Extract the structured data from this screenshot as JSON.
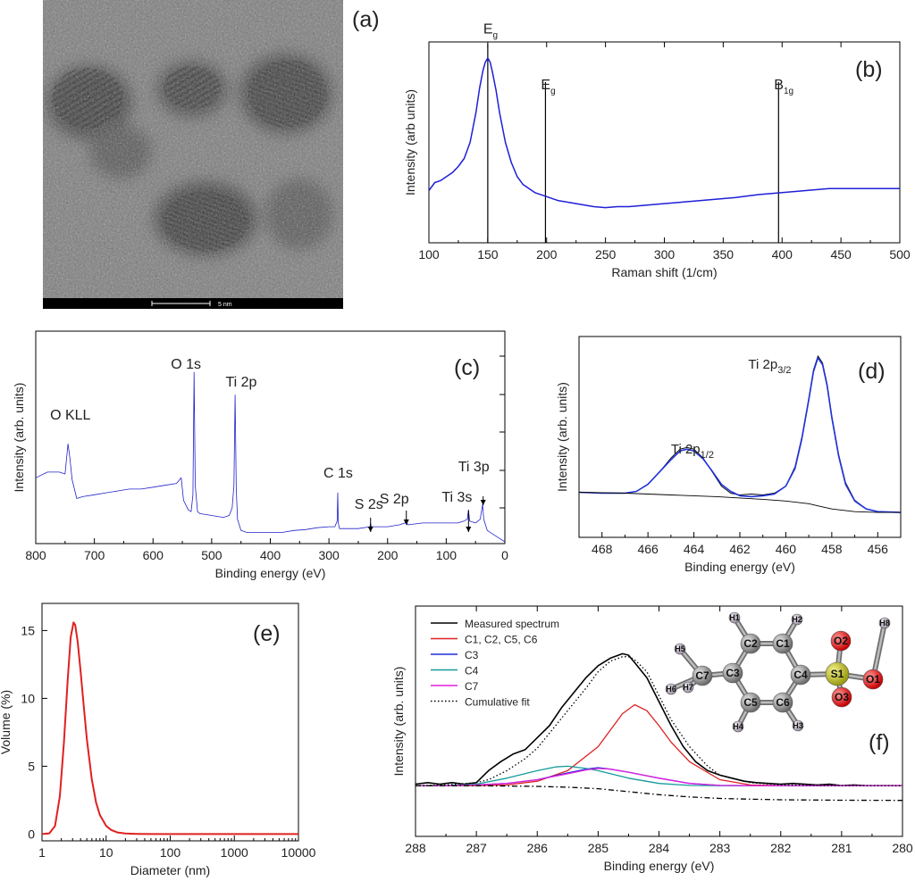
{
  "panels": {
    "a": {
      "letter": "(a)",
      "scale_bar_label": "5 nm",
      "image_description_colors": {
        "background": "#777777",
        "bar": "#000000"
      }
    },
    "b": {
      "letter": "(b)",
      "peak_labels": [
        {
          "main": "E",
          "sub": "g",
          "x": 150
        },
        {
          "main": "E",
          "sub": "g",
          "x": 199
        },
        {
          "main": "B",
          "sub": "1g",
          "x": 397
        }
      ]
    },
    "c": {
      "letter": "(c)",
      "peak_labels": [
        {
          "text": "O KLL",
          "x": 745
        },
        {
          "text": "O 1s",
          "x": 530
        },
        {
          "text": "Ti 2p",
          "x": 458
        },
        {
          "text": "C 1s",
          "x": 285
        },
        {
          "text": "S 2s",
          "x": 229
        },
        {
          "text": "S 2p",
          "x": 168
        },
        {
          "text": "Ti 3s",
          "x": 62
        },
        {
          "text": "Ti 3p",
          "x": 37
        }
      ]
    },
    "d": {
      "letter": "(d)",
      "peak_labels": [
        {
          "main": "Ti  2p",
          "sub": "1/2",
          "x": 464.3
        },
        {
          "main": "Ti  2p",
          "sub": "3/2",
          "x": 458.6
        }
      ]
    },
    "e": {
      "letter": "(e)"
    },
    "f": {
      "letter": "(f)",
      "molecule_atoms": [
        "H1",
        "H2",
        "H5",
        "C2",
        "C1",
        "O2",
        "H8",
        "C7",
        "C3",
        "C4",
        "S1",
        "O1",
        "H6",
        "H7",
        "C5",
        "C6",
        "O3",
        "H4",
        "H3"
      ]
    }
  },
  "chart_data": [
    {
      "id": "b",
      "type": "line",
      "title": "",
      "xlabel": "Raman shift (1/cm)",
      "ylabel": "Intensity (arb units)",
      "xlim": [
        100,
        500
      ],
      "ylim": [
        0,
        1
      ],
      "xticks": [
        100,
        150,
        200,
        250,
        300,
        350,
        400,
        450,
        500
      ],
      "yticks_labeled": false,
      "series": [
        {
          "color": "#1f1fd8",
          "x": [
            100,
            105,
            110,
            115,
            120,
            125,
            130,
            135,
            140,
            143,
            146,
            148,
            150,
            152,
            154,
            157,
            160,
            165,
            170,
            175,
            180,
            190,
            200,
            210,
            220,
            230,
            240,
            250,
            260,
            270,
            280,
            300,
            320,
            340,
            360,
            380,
            400,
            420,
            440,
            460,
            480,
            500
          ],
          "y": [
            0.26,
            0.3,
            0.31,
            0.33,
            0.35,
            0.38,
            0.42,
            0.5,
            0.65,
            0.77,
            0.86,
            0.9,
            0.92,
            0.9,
            0.85,
            0.76,
            0.65,
            0.5,
            0.4,
            0.33,
            0.29,
            0.25,
            0.23,
            0.21,
            0.2,
            0.19,
            0.18,
            0.175,
            0.18,
            0.18,
            0.185,
            0.195,
            0.205,
            0.215,
            0.225,
            0.24,
            0.25,
            0.26,
            0.27,
            0.27,
            0.27,
            0.27
          ]
        }
      ],
      "vlines": [
        {
          "x": 150,
          "top": 0.99
        },
        {
          "x": 199,
          "top": 0.8
        },
        {
          "x": 397,
          "top": 0.8
        }
      ]
    },
    {
      "id": "c",
      "type": "line",
      "title": "",
      "xlabel": "Binding energy (eV)",
      "ylabel": "Intensity (arb. units)",
      "xlim": [
        800,
        0
      ],
      "ylim": [
        0,
        1
      ],
      "xticks": [
        800,
        700,
        600,
        500,
        400,
        300,
        200,
        100,
        0
      ],
      "yticks_labeled": false,
      "series": [
        {
          "color": "#2222cc",
          "x": [
            800,
            780,
            760,
            750,
            745,
            742,
            738,
            730,
            720,
            700,
            680,
            660,
            640,
            620,
            600,
            580,
            560,
            552,
            548,
            540,
            535,
            532,
            530,
            528,
            524,
            520,
            500,
            480,
            470,
            465,
            462,
            460,
            458,
            456,
            450,
            440,
            430,
            420,
            400,
            380,
            360,
            340,
            320,
            300,
            290,
            286,
            285,
            284,
            282,
            270,
            250,
            230,
            229,
            228,
            200,
            180,
            170,
            168,
            166,
            140,
            120,
            100,
            80,
            70,
            64,
            62,
            60,
            50,
            42,
            38,
            37,
            36,
            30,
            20,
            10,
            0
          ],
          "y": [
            0.34,
            0.37,
            0.37,
            0.36,
            0.52,
            0.45,
            0.33,
            0.23,
            0.24,
            0.25,
            0.26,
            0.27,
            0.28,
            0.28,
            0.29,
            0.3,
            0.31,
            0.34,
            0.22,
            0.17,
            0.16,
            0.25,
            0.9,
            0.3,
            0.16,
            0.15,
            0.14,
            0.13,
            0.14,
            0.18,
            0.3,
            0.78,
            0.28,
            0.12,
            0.06,
            0.05,
            0.05,
            0.05,
            0.05,
            0.05,
            0.06,
            0.065,
            0.075,
            0.08,
            0.08,
            0.11,
            0.26,
            0.1,
            0.07,
            0.07,
            0.07,
            0.08,
            0.1,
            0.08,
            0.08,
            0.09,
            0.1,
            0.12,
            0.09,
            0.1,
            0.1,
            0.1,
            0.1,
            0.11,
            0.12,
            0.17,
            0.11,
            0.1,
            0.12,
            0.2,
            0.16,
            0.12,
            0.06,
            0.04,
            0.02,
            0.0
          ]
        }
      ]
    },
    {
      "id": "d",
      "type": "line",
      "title": "",
      "xlabel": "Binding energy (eV)",
      "ylabel": "Intensity (arb. units)",
      "xlim": [
        469,
        455
      ],
      "ylim": [
        0,
        1
      ],
      "xticks": [
        468,
        466,
        464,
        462,
        460,
        458,
        456
      ],
      "yticks_labeled": false,
      "series": [
        {
          "color": "#000000",
          "x": [
            469,
            468,
            467,
            466.5,
            466,
            465.5,
            465,
            464.6,
            464.3,
            464,
            463.6,
            463.2,
            462.8,
            462.4,
            462,
            461.5,
            461,
            460.5,
            460,
            459.6,
            459.3,
            459,
            458.8,
            458.6,
            458.4,
            458.2,
            458,
            457.7,
            457.4,
            457,
            456.5,
            456,
            455
          ],
          "y": [
            0.165,
            0.16,
            0.16,
            0.17,
            0.21,
            0.28,
            0.36,
            0.41,
            0.42,
            0.41,
            0.36,
            0.28,
            0.2,
            0.16,
            0.15,
            0.155,
            0.15,
            0.16,
            0.2,
            0.31,
            0.48,
            0.7,
            0.86,
            0.94,
            0.9,
            0.78,
            0.6,
            0.38,
            0.22,
            0.12,
            0.07,
            0.055,
            0.05
          ]
        },
        {
          "color": "#2233dd",
          "x": [
            469,
            468,
            467,
            466.5,
            466,
            465.5,
            465,
            464.6,
            464.3,
            464,
            463.6,
            463.2,
            462.8,
            462.4,
            462,
            461.5,
            461,
            460.5,
            460,
            459.6,
            459.3,
            459,
            458.8,
            458.6,
            458.4,
            458.2,
            458,
            457.7,
            457.4,
            457,
            456.5,
            456,
            455
          ],
          "y": [
            0.165,
            0.16,
            0.16,
            0.17,
            0.21,
            0.28,
            0.35,
            0.4,
            0.41,
            0.4,
            0.355,
            0.285,
            0.21,
            0.17,
            0.145,
            0.14,
            0.145,
            0.155,
            0.2,
            0.3,
            0.47,
            0.69,
            0.85,
            0.93,
            0.89,
            0.77,
            0.59,
            0.37,
            0.21,
            0.115,
            0.07,
            0.055,
            0.05
          ]
        },
        {
          "color": "#000000",
          "x": [
            469,
            467,
            465,
            463,
            461,
            460,
            459,
            458.5,
            458,
            457,
            456,
            455
          ],
          "y": [
            0.165,
            0.16,
            0.15,
            0.14,
            0.125,
            0.115,
            0.1,
            0.085,
            0.07,
            0.055,
            0.05,
            0.05
          ]
        }
      ]
    },
    {
      "id": "e",
      "type": "line",
      "title": "",
      "xlabel": "Diameter (nm)",
      "ylabel": "Volume (%)",
      "xscale": "log",
      "xlim": [
        1,
        10000
      ],
      "ylim": [
        -0.5,
        17
      ],
      "xticks": [
        1,
        10,
        100,
        1000,
        10000
      ],
      "xtick_labels": [
        "1",
        "10",
        "100",
        "1000",
        "10000"
      ],
      "yticks": [
        0,
        5,
        10,
        15
      ],
      "series": [
        {
          "color": "#e02020",
          "x": [
            1,
            1.3,
            1.6,
            1.9,
            2.2,
            2.5,
            2.8,
            3.1,
            3.3,
            3.6,
            4,
            4.5,
            5,
            6,
            7,
            8,
            10,
            12,
            15,
            20,
            30,
            50,
            100,
            1000,
            10000
          ],
          "y": [
            0,
            0.05,
            0.6,
            2.8,
            6.8,
            11.2,
            14.5,
            15.6,
            15.4,
            14.2,
            12.0,
            9.3,
            7.0,
            4.0,
            2.3,
            1.4,
            0.6,
            0.3,
            0.12,
            0.04,
            0.01,
            0,
            0,
            0,
            0
          ]
        }
      ]
    },
    {
      "id": "f",
      "type": "line",
      "title": "",
      "xlabel": "Binding energy (eV)",
      "ylabel": "Intensity (arb. units)",
      "xlim": [
        288,
        280
      ],
      "ylim": [
        0,
        1
      ],
      "xticks": [
        288,
        287,
        286,
        285,
        284,
        283,
        282,
        281,
        280
      ],
      "yticks_labeled": false,
      "legend": "top-left",
      "series": [
        {
          "name": "Measured spectrum",
          "color": "#000000",
          "style": "solid",
          "x": [
            288,
            287.8,
            287.6,
            287.4,
            287.2,
            287,
            286.8,
            286.6,
            286.4,
            286.2,
            286,
            285.8,
            285.6,
            285.4,
            285.2,
            285,
            284.8,
            284.6,
            284.5,
            284.4,
            284.2,
            284,
            283.8,
            283.6,
            283.4,
            283.2,
            283,
            282.8,
            282.6,
            282.4,
            282.2,
            282,
            281.8,
            281.6,
            281.4,
            281.2,
            281,
            280.8,
            280.6,
            280.4,
            280.2,
            280
          ],
          "y": [
            0.11,
            0.12,
            0.11,
            0.12,
            0.11,
            0.12,
            0.2,
            0.26,
            0.31,
            0.34,
            0.42,
            0.5,
            0.62,
            0.72,
            0.82,
            0.9,
            0.95,
            0.98,
            0.97,
            0.92,
            0.82,
            0.66,
            0.5,
            0.36,
            0.26,
            0.2,
            0.17,
            0.15,
            0.13,
            0.12,
            0.115,
            0.11,
            0.115,
            0.11,
            0.105,
            0.11,
            0.1,
            0.105,
            0.1,
            0.1,
            0.1,
            0.1
          ]
        },
        {
          "name": "C1, C2, C5, C6",
          "color": "#dd2222",
          "style": "solid",
          "x": [
            288,
            287.5,
            287,
            286.5,
            286,
            285.5,
            285,
            284.8,
            284.6,
            284.4,
            284.2,
            284,
            283.8,
            283.5,
            283,
            282.5,
            282,
            281,
            280
          ],
          "y": [
            0.1,
            0.1,
            0.1,
            0.105,
            0.13,
            0.2,
            0.36,
            0.47,
            0.58,
            0.64,
            0.6,
            0.5,
            0.39,
            0.26,
            0.14,
            0.105,
            0.1,
            0.1,
            0.1
          ]
        },
        {
          "name": "C3",
          "color": "#1f2fd8",
          "style": "solid",
          "x": [
            288,
            287.5,
            287,
            286.5,
            286,
            285.5,
            285.2,
            285,
            284.8,
            284.5,
            284,
            283.5,
            283,
            282.5,
            282,
            281,
            280
          ],
          "y": [
            0.1,
            0.1,
            0.105,
            0.115,
            0.14,
            0.185,
            0.21,
            0.22,
            0.21,
            0.19,
            0.15,
            0.115,
            0.102,
            0.1,
            0.1,
            0.1,
            0.1
          ]
        },
        {
          "name": "C4",
          "color": "#159a9a",
          "style": "solid",
          "x": [
            288,
            287.5,
            287,
            286.5,
            286,
            285.7,
            285.5,
            285.2,
            285,
            284.5,
            284,
            283.5,
            283,
            282.5,
            282,
            281,
            280
          ],
          "y": [
            0.1,
            0.1,
            0.11,
            0.15,
            0.2,
            0.225,
            0.23,
            0.215,
            0.2,
            0.15,
            0.115,
            0.102,
            0.1,
            0.1,
            0.1,
            0.1,
            0.1
          ]
        },
        {
          "name": "C7",
          "color": "#e020e0",
          "style": "solid",
          "x": [
            288,
            287.5,
            287,
            286.5,
            286,
            285.5,
            285.2,
            285,
            284.8,
            284.5,
            284,
            283.5,
            283,
            282.5,
            282,
            281,
            280
          ],
          "y": [
            0.1,
            0.1,
            0.105,
            0.115,
            0.14,
            0.18,
            0.205,
            0.215,
            0.21,
            0.19,
            0.15,
            0.115,
            0.102,
            0.1,
            0.1,
            0.1,
            0.1
          ]
        },
        {
          "name": "Cumulative fit",
          "color": "#000000",
          "style": "dotted",
          "x": [
            288,
            287.5,
            287,
            286.8,
            286.5,
            286.2,
            286,
            285.8,
            285.5,
            285.2,
            285,
            284.8,
            284.6,
            284.5,
            284.4,
            284.2,
            284,
            283.8,
            283.5,
            283.2,
            283,
            282.5,
            282,
            281,
            280
          ],
          "y": [
            0.1,
            0.105,
            0.12,
            0.14,
            0.2,
            0.28,
            0.35,
            0.45,
            0.6,
            0.75,
            0.86,
            0.93,
            0.96,
            0.96,
            0.94,
            0.86,
            0.7,
            0.54,
            0.36,
            0.23,
            0.17,
            0.12,
            0.105,
            0.1,
            0.1
          ]
        },
        {
          "name": "",
          "color": "#000000",
          "style": "dashdot",
          "x": [
            288,
            287,
            286,
            285.5,
            285,
            284.5,
            284,
            283.5,
            283,
            282.5,
            282,
            281,
            280
          ],
          "y": [
            0.1,
            0.1,
            0.095,
            0.09,
            0.08,
            0.06,
            0.04,
            0.025,
            0.015,
            0.01,
            0.006,
            0.003,
            0.002
          ]
        }
      ]
    }
  ]
}
